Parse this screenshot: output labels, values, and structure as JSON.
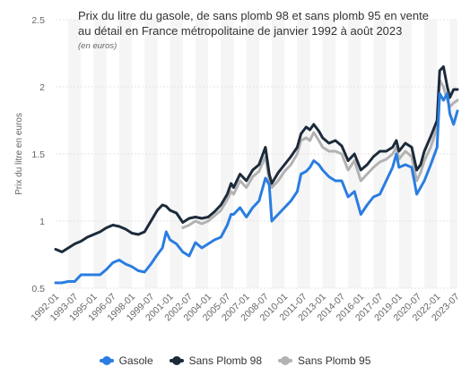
{
  "chart_data": {
    "type": "line",
    "title_lines": [
      "Prix du litre du gasole, de sans plomb 98 et sans plomb 95 en vente",
      "au détail en France métropolitaine de janvier 1992 à août 2023"
    ],
    "subtitle": "(en euros)",
    "ylabel": "Prix du litre en euros",
    "xlabel": "",
    "ylim": [
      0.5,
      2.5
    ],
    "yticks": [
      "0.5",
      "1",
      "1.5",
      "2",
      "2.5"
    ],
    "ytick_values": [
      0.5,
      1,
      1.5,
      2,
      2.5
    ],
    "xticks": [
      "1992-01",
      "1993-07",
      "1995-01",
      "1996-07",
      "1998-01",
      "1999-07",
      "2001-01",
      "2002-07",
      "2004-01",
      "2005-07",
      "2007-01",
      "2008-07",
      "2010-01",
      "2011-07",
      "2013-01",
      "2014-07",
      "2016-01",
      "2017-07",
      "2019-01",
      "2020-07",
      "2022-01",
      "2023-07"
    ],
    "xtick_values": [
      1992.0,
      1993.5,
      1995.0,
      1996.5,
      1998.0,
      1999.5,
      2001.0,
      2002.5,
      2004.0,
      2005.5,
      2007.0,
      2008.5,
      2010.0,
      2011.5,
      2013.0,
      2014.5,
      2016.0,
      2017.5,
      2019.0,
      2020.5,
      2022.0,
      2023.5
    ],
    "xlim": [
      1992.0,
      2023.6
    ],
    "grid": "horizontal",
    "legend_position": "bottom",
    "series": [
      {
        "name": "Gasole",
        "color": "#2a7de1",
        "x": [
          1992.0,
          1992.5,
          1993.0,
          1993.5,
          1994.0,
          1994.5,
          1995.0,
          1995.5,
          1996.0,
          1996.5,
          1997.0,
          1997.5,
          1998.0,
          1998.5,
          1999.0,
          1999.5,
          2000.0,
          2000.4,
          2000.7,
          2001.0,
          2001.5,
          2002.0,
          2002.5,
          2003.0,
          2003.5,
          2004.0,
          2004.5,
          2005.0,
          2005.5,
          2005.8,
          2006.0,
          2006.5,
          2007.0,
          2007.5,
          2008.0,
          2008.5,
          2008.8,
          2009.0,
          2009.5,
          2010.0,
          2010.5,
          2011.0,
          2011.3,
          2011.7,
          2012.0,
          2012.3,
          2012.7,
          2013.0,
          2013.5,
          2014.0,
          2014.5,
          2015.0,
          2015.5,
          2016.0,
          2016.5,
          2017.0,
          2017.5,
          2018.0,
          2018.5,
          2018.8,
          2019.0,
          2019.5,
          2020.0,
          2020.4,
          2020.7,
          2021.0,
          2021.5,
          2022.0,
          2022.2,
          2022.5,
          2022.8,
          2023.0,
          2023.3,
          2023.6
        ],
        "y": [
          0.54,
          0.54,
          0.55,
          0.55,
          0.6,
          0.6,
          0.6,
          0.6,
          0.64,
          0.69,
          0.71,
          0.68,
          0.66,
          0.63,
          0.62,
          0.68,
          0.75,
          0.8,
          0.92,
          0.86,
          0.83,
          0.77,
          0.74,
          0.84,
          0.8,
          0.83,
          0.86,
          0.88,
          0.97,
          1.05,
          1.05,
          1.1,
          1.03,
          1.1,
          1.15,
          1.32,
          1.27,
          1.0,
          1.05,
          1.1,
          1.15,
          1.22,
          1.35,
          1.37,
          1.4,
          1.45,
          1.42,
          1.38,
          1.33,
          1.3,
          1.3,
          1.18,
          1.22,
          1.05,
          1.12,
          1.18,
          1.2,
          1.3,
          1.4,
          1.5,
          1.4,
          1.42,
          1.4,
          1.2,
          1.25,
          1.3,
          1.42,
          1.55,
          1.95,
          1.9,
          1.95,
          1.8,
          1.72,
          1.82
        ]
      },
      {
        "name": "Sans Plomb 98",
        "color": "#1c2b3a",
        "x": [
          1992.0,
          1992.5,
          1993.0,
          1993.5,
          1994.0,
          1994.5,
          1995.0,
          1995.5,
          1996.0,
          1996.5,
          1997.0,
          1997.5,
          1998.0,
          1998.5,
          1999.0,
          1999.5,
          2000.0,
          2000.4,
          2000.7,
          2001.0,
          2001.5,
          2002.0,
          2002.5,
          2003.0,
          2003.5,
          2004.0,
          2004.5,
          2005.0,
          2005.5,
          2005.8,
          2006.0,
          2006.5,
          2007.0,
          2007.5,
          2008.0,
          2008.5,
          2008.8,
          2009.0,
          2009.5,
          2010.0,
          2010.5,
          2011.0,
          2011.3,
          2011.7,
          2012.0,
          2012.3,
          2012.7,
          2013.0,
          2013.5,
          2014.0,
          2014.5,
          2015.0,
          2015.5,
          2016.0,
          2016.5,
          2017.0,
          2017.5,
          2018.0,
          2018.5,
          2018.8,
          2019.0,
          2019.5,
          2020.0,
          2020.4,
          2020.7,
          2021.0,
          2021.5,
          2022.0,
          2022.2,
          2022.5,
          2022.8,
          2023.0,
          2023.3,
          2023.6
        ],
        "y": [
          0.79,
          0.77,
          0.8,
          0.83,
          0.85,
          0.88,
          0.9,
          0.92,
          0.95,
          0.97,
          0.96,
          0.94,
          0.91,
          0.9,
          0.92,
          1.0,
          1.08,
          1.12,
          1.11,
          1.08,
          1.06,
          0.99,
          1.02,
          1.03,
          1.02,
          1.03,
          1.07,
          1.12,
          1.2,
          1.28,
          1.25,
          1.35,
          1.3,
          1.38,
          1.42,
          1.55,
          1.35,
          1.28,
          1.36,
          1.42,
          1.48,
          1.55,
          1.65,
          1.7,
          1.68,
          1.72,
          1.67,
          1.62,
          1.58,
          1.6,
          1.56,
          1.45,
          1.5,
          1.38,
          1.42,
          1.48,
          1.52,
          1.52,
          1.55,
          1.6,
          1.52,
          1.58,
          1.55,
          1.38,
          1.42,
          1.52,
          1.63,
          1.75,
          2.12,
          2.15,
          2.0,
          1.92,
          1.98,
          1.98
        ]
      },
      {
        "name": "Sans Plomb 95",
        "color": "#b2b2b2",
        "x": [
          2002.0,
          2002.5,
          2003.0,
          2003.5,
          2004.0,
          2004.5,
          2005.0,
          2005.5,
          2005.8,
          2006.0,
          2006.5,
          2007.0,
          2007.5,
          2008.0,
          2008.5,
          2008.8,
          2009.0,
          2009.5,
          2010.0,
          2010.5,
          2011.0,
          2011.3,
          2011.7,
          2012.0,
          2012.3,
          2012.7,
          2013.0,
          2013.5,
          2014.0,
          2014.5,
          2015.0,
          2015.5,
          2016.0,
          2016.5,
          2017.0,
          2017.5,
          2018.0,
          2018.5,
          2018.8,
          2019.0,
          2019.5,
          2020.0,
          2020.4,
          2020.7,
          2021.0,
          2021.5,
          2022.0,
          2022.2,
          2022.5,
          2022.8,
          2023.0,
          2023.3,
          2023.6
        ],
        "y": [
          0.95,
          0.97,
          1.0,
          0.98,
          1.0,
          1.04,
          1.08,
          1.16,
          1.22,
          1.2,
          1.3,
          1.25,
          1.33,
          1.37,
          1.48,
          1.3,
          1.25,
          1.3,
          1.37,
          1.42,
          1.5,
          1.6,
          1.62,
          1.6,
          1.66,
          1.6,
          1.55,
          1.52,
          1.52,
          1.5,
          1.38,
          1.45,
          1.3,
          1.35,
          1.4,
          1.44,
          1.46,
          1.5,
          1.55,
          1.46,
          1.52,
          1.48,
          1.3,
          1.36,
          1.45,
          1.55,
          1.7,
          2.05,
          2.0,
          1.9,
          1.85,
          1.88,
          1.9
        ]
      }
    ],
    "legend": [
      "Gasole",
      "Sans Plomb 98",
      "Sans Plomb 95"
    ]
  }
}
